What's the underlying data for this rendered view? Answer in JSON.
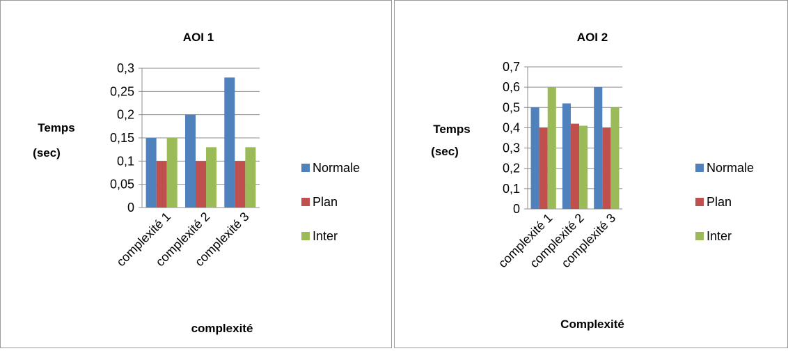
{
  "colors": {
    "Normale": "#4F81BD",
    "Plan": "#C0504D",
    "Inter": "#9BBB59",
    "grid": "#8c8c8c"
  },
  "chart_data": [
    {
      "type": "bar",
      "title": "AOI 1",
      "ylabel_line1": "Temps",
      "ylabel_line2": "(sec)",
      "xlabel": "complexité",
      "categories": [
        "complexité 1",
        "complexité 2",
        "complexité 3"
      ],
      "ylim": [
        0,
        0.3
      ],
      "yticks": [
        "0",
        "0,05",
        "0,1",
        "0,15",
        "0,2",
        "0,25",
        "0,3"
      ],
      "grid": true,
      "legend_position": "right",
      "series": [
        {
          "name": "Normale",
          "values": [
            0.15,
            0.2,
            0.28
          ]
        },
        {
          "name": "Plan",
          "values": [
            0.1,
            0.1,
            0.1
          ]
        },
        {
          "name": "Inter",
          "values": [
            0.15,
            0.13,
            0.13
          ]
        }
      ]
    },
    {
      "type": "bar",
      "title": "AOI 2",
      "ylabel_line1": "Temps",
      "ylabel_line2": "(sec)",
      "xlabel": "Complexité",
      "categories": [
        "complexité 1",
        "complexité 2",
        "complexité 3"
      ],
      "ylim": [
        0,
        0.7
      ],
      "yticks": [
        "0",
        "0,1",
        "0,2",
        "0,3",
        "0,4",
        "0,5",
        "0,6",
        "0,7"
      ],
      "grid": true,
      "legend_position": "right",
      "series": [
        {
          "name": "Normale",
          "values": [
            0.5,
            0.52,
            0.6
          ]
        },
        {
          "name": "Plan",
          "values": [
            0.4,
            0.42,
            0.4
          ]
        },
        {
          "name": "Inter",
          "values": [
            0.6,
            0.41,
            0.5
          ]
        }
      ]
    }
  ]
}
